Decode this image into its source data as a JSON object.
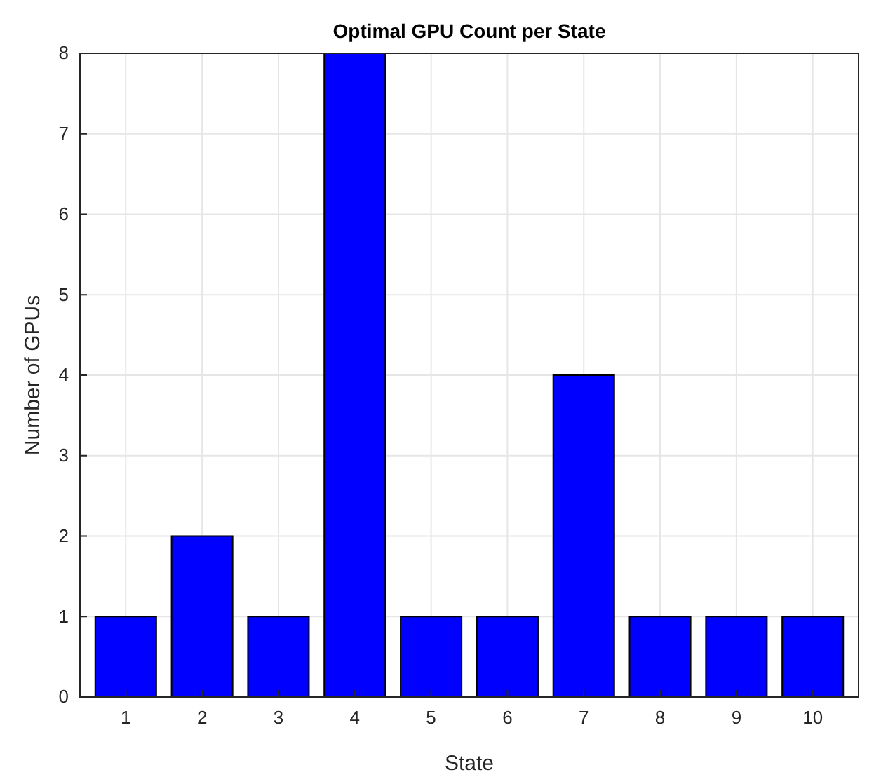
{
  "chart_data": {
    "type": "bar",
    "title": "Optimal GPU Count per State",
    "xlabel": "State",
    "ylabel": "Number of GPUs",
    "categories": [
      "1",
      "2",
      "3",
      "4",
      "5",
      "6",
      "7",
      "8",
      "9",
      "10"
    ],
    "values": [
      1,
      2,
      1,
      8,
      1,
      1,
      4,
      1,
      1,
      1
    ],
    "color": "#0000ff",
    "ylim": [
      0,
      8
    ],
    "yticks": [
      0,
      1,
      2,
      3,
      4,
      5,
      6,
      7,
      8
    ],
    "grid": true
  }
}
